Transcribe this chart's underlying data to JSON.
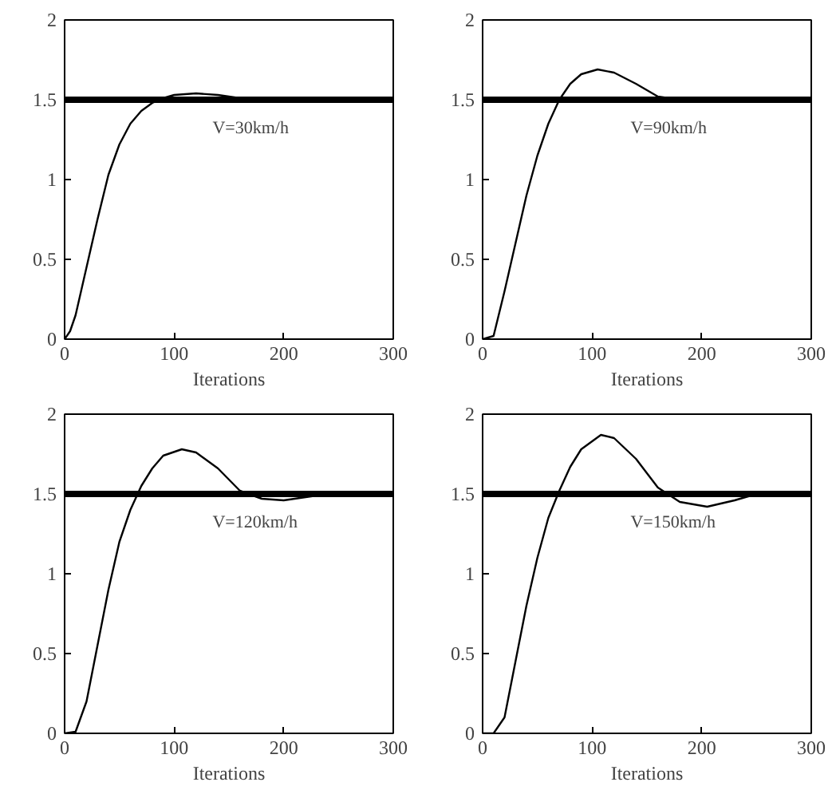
{
  "chart_data": [
    {
      "type": "line",
      "xlabel": "Iterations",
      "xlim": [
        0,
        300
      ],
      "ylim": [
        0,
        2
      ],
      "xticks": [
        0,
        100,
        200,
        300
      ],
      "yticks": [
        0,
        0.5,
        1,
        1.5,
        2
      ],
      "grid": false,
      "series": [
        {
          "color": "#000000",
          "x": [
            0,
            5,
            10,
            20,
            30,
            40,
            50,
            60,
            70,
            80,
            90,
            100,
            120,
            140,
            160,
            200,
            300
          ],
          "values": [
            0,
            0.05,
            0.15,
            0.45,
            0.75,
            1.03,
            1.22,
            1.35,
            1.43,
            1.48,
            1.51,
            1.53,
            1.54,
            1.53,
            1.51,
            1.5,
            1.5
          ]
        }
      ],
      "ref_lines": [
        {
          "axis": "y",
          "value": 1.5,
          "label": null,
          "color": "#000000"
        }
      ],
      "annotations": [
        "V=30km/h"
      ]
    },
    {
      "type": "line",
      "xlabel": "Iterations",
      "xlim": [
        0,
        300
      ],
      "ylim": [
        0,
        2
      ],
      "xticks": [
        0,
        100,
        200,
        300
      ],
      "yticks": [
        0,
        0.5,
        1,
        1.5,
        2
      ],
      "grid": false,
      "series": [
        {
          "color": "#000000",
          "x": [
            0,
            10,
            20,
            30,
            40,
            50,
            60,
            70,
            80,
            90,
            105,
            120,
            140,
            160,
            180,
            300
          ],
          "values": [
            0,
            0.02,
            0.3,
            0.6,
            0.9,
            1.15,
            1.35,
            1.5,
            1.6,
            1.66,
            1.69,
            1.67,
            1.6,
            1.52,
            1.5,
            1.5
          ]
        }
      ],
      "ref_lines": [
        {
          "axis": "y",
          "value": 1.5,
          "label": null,
          "color": "#000000"
        }
      ],
      "annotations": [
        "V=90km/h"
      ]
    },
    {
      "type": "line",
      "xlabel": "Iterations",
      "xlim": [
        0,
        300
      ],
      "ylim": [
        0,
        2
      ],
      "xticks": [
        0,
        100,
        200,
        300
      ],
      "yticks": [
        0,
        0.5,
        1,
        1.5,
        2
      ],
      "grid": false,
      "series": [
        {
          "color": "#000000",
          "x": [
            0,
            10,
            20,
            30,
            40,
            50,
            60,
            70,
            80,
            90,
            107,
            120,
            140,
            160,
            180,
            200,
            220,
            240,
            300
          ],
          "values": [
            0,
            0.01,
            0.2,
            0.55,
            0.9,
            1.2,
            1.4,
            1.55,
            1.66,
            1.74,
            1.78,
            1.76,
            1.66,
            1.52,
            1.47,
            1.46,
            1.48,
            1.5,
            1.5
          ]
        }
      ],
      "ref_lines": [
        {
          "axis": "y",
          "value": 1.5,
          "label": null,
          "color": "#000000"
        }
      ],
      "annotations": [
        "V=120km/h"
      ]
    },
    {
      "type": "line",
      "xlabel": "Iterations",
      "xlim": [
        0,
        300
      ],
      "ylim": [
        0,
        2
      ],
      "xticks": [
        0,
        100,
        200,
        300
      ],
      "yticks": [
        0,
        0.5,
        1,
        1.5,
        2
      ],
      "grid": false,
      "series": [
        {
          "color": "#000000",
          "x": [
            0,
            10,
            20,
            30,
            40,
            50,
            60,
            70,
            80,
            90,
            108,
            120,
            140,
            160,
            180,
            205,
            230,
            250,
            300
          ],
          "values": [
            0,
            0,
            0.1,
            0.45,
            0.8,
            1.1,
            1.35,
            1.52,
            1.67,
            1.78,
            1.87,
            1.85,
            1.72,
            1.54,
            1.45,
            1.42,
            1.46,
            1.5,
            1.5
          ]
        }
      ],
      "ref_lines": [
        {
          "axis": "y",
          "value": 1.5,
          "label": null,
          "color": "#000000"
        }
      ],
      "annotations": [
        "V=150km/h"
      ]
    }
  ]
}
